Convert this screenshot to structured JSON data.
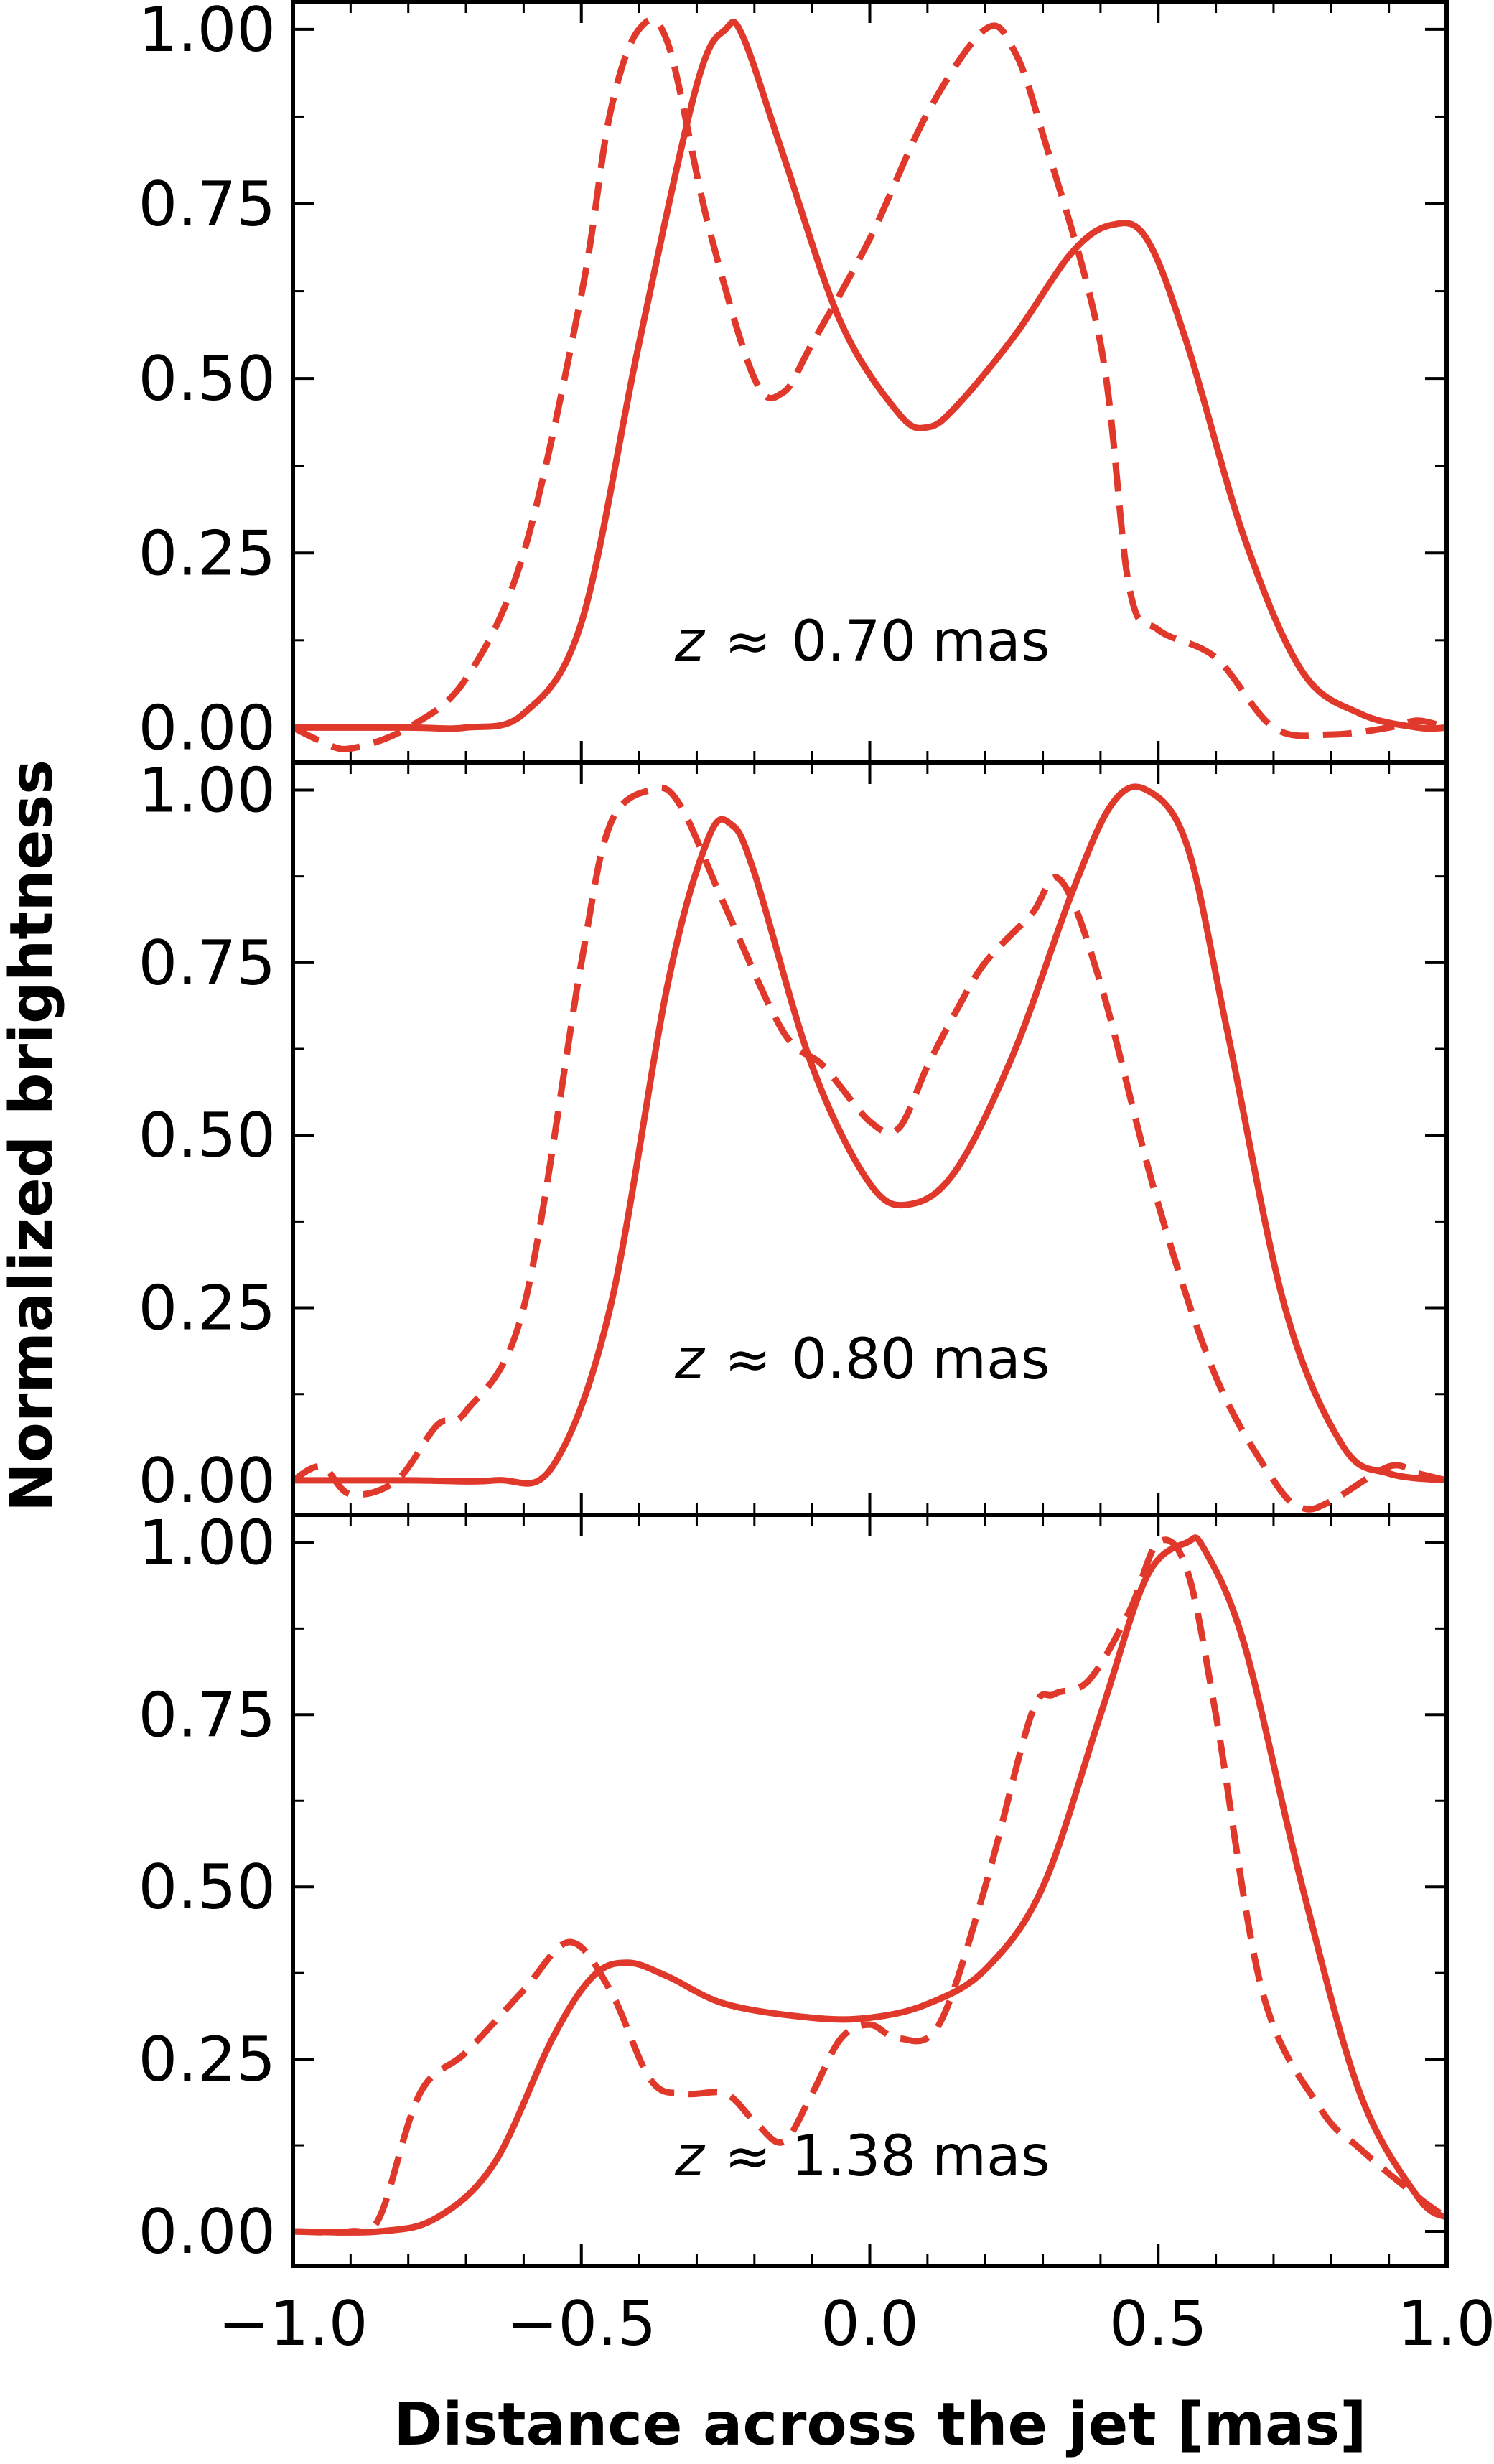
{
  "colors": {
    "line": "#e0392b",
    "axis": "#000000"
  },
  "ylabel": "Normalized brightness",
  "xlabel": "Distance across the jet [mas]",
  "chart_data": [
    {
      "type": "line",
      "annotation": {
        "variable": "z",
        "relation": "≈",
        "value": "0.70",
        "unit": "mas"
      },
      "xlim": [
        -1.0,
        1.0
      ],
      "ylim": [
        -0.05,
        1.04
      ],
      "xticks": [
        -1.0,
        -0.5,
        0.0,
        0.5,
        1.0
      ],
      "yticks": [
        "0.00",
        "0.25",
        "0.50",
        "0.75",
        "1.00"
      ],
      "series": [
        {
          "style": "solid",
          "x": [
            -1.0,
            -0.8,
            -0.7,
            -0.6,
            -0.5,
            -0.4,
            -0.3,
            -0.25,
            -0.22,
            -0.15,
            -0.05,
            0.05,
            0.1,
            0.15,
            0.25,
            0.35,
            0.42,
            0.48,
            0.55,
            0.65,
            0.75,
            0.85,
            0.95,
            1.0
          ],
          "y": [
            0.0,
            0.0,
            0.0,
            0.02,
            0.15,
            0.55,
            0.92,
            1.0,
            0.99,
            0.82,
            0.58,
            0.45,
            0.43,
            0.46,
            0.56,
            0.68,
            0.72,
            0.7,
            0.55,
            0.27,
            0.08,
            0.02,
            0.0,
            0.0
          ]
        },
        {
          "style": "dashed",
          "x": [
            -1.0,
            -0.95,
            -0.9,
            -0.8,
            -0.7,
            -0.6,
            -0.5,
            -0.45,
            -0.4,
            -0.35,
            -0.28,
            -0.2,
            -0.15,
            -0.1,
            0.0,
            0.1,
            0.2,
            0.25,
            0.3,
            0.4,
            0.45,
            0.5,
            0.6,
            0.7,
            0.8,
            0.9,
            0.95,
            1.0
          ],
          "y": [
            0.0,
            -0.02,
            -0.03,
            0.0,
            0.07,
            0.25,
            0.62,
            0.88,
            1.0,
            0.98,
            0.72,
            0.5,
            0.48,
            0.55,
            0.7,
            0.88,
            1.0,
            0.97,
            0.85,
            0.55,
            0.2,
            0.14,
            0.1,
            0.0,
            -0.01,
            0.0,
            0.01,
            0.0
          ]
        }
      ]
    },
    {
      "type": "line",
      "annotation": {
        "variable": "z",
        "relation": "≈",
        "value": "0.80",
        "unit": "mas"
      },
      "xlim": [
        -1.0,
        1.0
      ],
      "ylim": [
        -0.05,
        1.04
      ],
      "xticks": [
        -1.0,
        -0.5,
        0.0,
        0.5,
        1.0
      ],
      "yticks": [
        "0.00",
        "0.25",
        "0.50",
        "0.75",
        "1.00"
      ],
      "series": [
        {
          "style": "solid",
          "x": [
            -1.0,
            -0.8,
            -0.65,
            -0.55,
            -0.45,
            -0.35,
            -0.28,
            -0.24,
            -0.2,
            -0.1,
            0.0,
            0.07,
            0.15,
            0.25,
            0.35,
            0.42,
            0.48,
            0.55,
            0.62,
            0.72,
            0.82,
            0.9,
            1.0
          ],
          "y": [
            0.0,
            0.0,
            0.0,
            0.02,
            0.25,
            0.72,
            0.93,
            0.95,
            0.88,
            0.6,
            0.43,
            0.4,
            0.45,
            0.62,
            0.85,
            0.98,
            1.0,
            0.92,
            0.65,
            0.25,
            0.05,
            0.01,
            0.0
          ],
          "name_hidden": true
        },
        {
          "style": "dashed",
          "x": [
            -1.0,
            -0.95,
            -0.9,
            -0.82,
            -0.75,
            -0.7,
            -0.6,
            -0.5,
            -0.45,
            -0.38,
            -0.33,
            -0.25,
            -0.15,
            -0.08,
            0.0,
            0.05,
            0.1,
            0.15,
            0.2,
            0.28,
            0.33,
            0.4,
            0.5,
            0.6,
            0.7,
            0.75,
            0.8,
            0.9,
            0.95,
            1.0
          ],
          "y": [
            0.0,
            0.02,
            -0.02,
            0.0,
            0.08,
            0.1,
            0.25,
            0.75,
            0.95,
            1.0,
            0.98,
            0.83,
            0.65,
            0.6,
            0.52,
            0.51,
            0.6,
            0.68,
            0.75,
            0.82,
            0.87,
            0.72,
            0.4,
            0.15,
            0.0,
            -0.04,
            -0.03,
            0.02,
            0.01,
            0.0
          ]
        }
      ]
    },
    {
      "type": "line",
      "annotation": {
        "variable": "z",
        "relation": "≈",
        "value": "1.38",
        "unit": "mas"
      },
      "xlim": [
        -1.0,
        1.0
      ],
      "ylim": [
        -0.05,
        1.04
      ],
      "xticks": [
        -1.0,
        -0.5,
        0.0,
        0.5,
        1.0
      ],
      "yticks": [
        "0.00",
        "0.25",
        "0.50",
        "0.75",
        "1.00"
      ],
      "series": [
        {
          "style": "solid",
          "x": [
            -1.0,
            -0.85,
            -0.75,
            -0.65,
            -0.55,
            -0.48,
            -0.42,
            -0.35,
            -0.25,
            -0.1,
            0.0,
            0.1,
            0.2,
            0.3,
            0.4,
            0.48,
            0.55,
            0.58,
            0.65,
            0.75,
            0.85,
            0.95,
            1.0
          ],
          "y": [
            0.0,
            0.0,
            0.02,
            0.1,
            0.28,
            0.37,
            0.39,
            0.37,
            0.33,
            0.31,
            0.31,
            0.33,
            0.38,
            0.5,
            0.75,
            0.95,
            1.0,
            0.99,
            0.85,
            0.5,
            0.2,
            0.05,
            0.02
          ]
        },
        {
          "style": "dashed",
          "x": [
            -1.0,
            -0.9,
            -0.85,
            -0.78,
            -0.7,
            -0.6,
            -0.52,
            -0.45,
            -0.38,
            -0.32,
            -0.25,
            -0.2,
            -0.15,
            -0.1,
            -0.05,
            0.0,
            0.05,
            0.12,
            0.2,
            0.28,
            0.32,
            0.38,
            0.45,
            0.5,
            0.55,
            0.6,
            0.68,
            0.78,
            0.85,
            0.95,
            1.0
          ],
          "y": [
            0.0,
            0.0,
            0.02,
            0.2,
            0.26,
            0.35,
            0.42,
            0.35,
            0.22,
            0.2,
            0.2,
            0.16,
            0.13,
            0.2,
            0.28,
            0.3,
            0.28,
            0.3,
            0.5,
            0.75,
            0.78,
            0.8,
            0.9,
            1.0,
            0.96,
            0.75,
            0.35,
            0.18,
            0.12,
            0.05,
            0.02
          ]
        }
      ]
    }
  ]
}
